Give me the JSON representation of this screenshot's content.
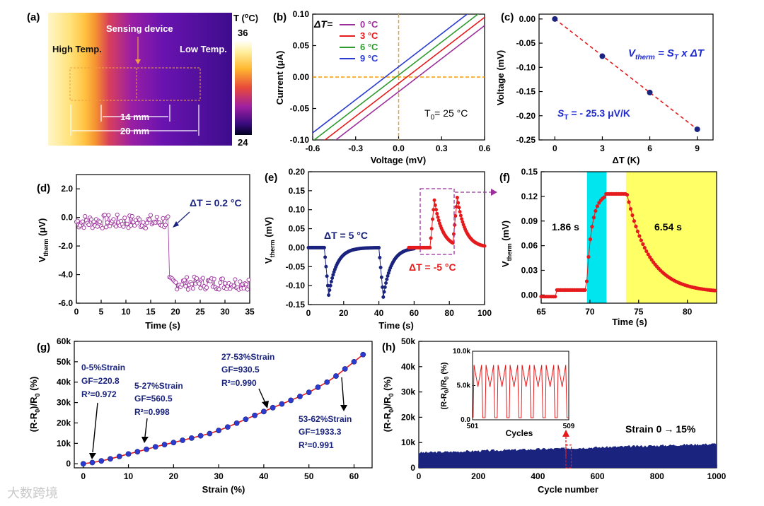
{
  "watermark": "大数跨境",
  "colors": {
    "navy": "#1a237e",
    "blue_text": "#1f2ad0",
    "red": "#e41a1c",
    "purple": "#9b2f9b",
    "green": "#2e9b2e",
    "orange": "#f39c12",
    "cyan": "#00e5ee",
    "yellow": "#ffff66"
  },
  "chart_data": [
    {
      "panel": "(a)",
      "type": "image",
      "texts": {
        "high_temp": "High Temp.",
        "low_temp": "Low Temp.",
        "sensing": "Sensing device",
        "dim_14": "14 mm",
        "dim_20": "20 mm",
        "colorbar_title": "T (",
        "colorbar_unit": "C)",
        "colorbar_degree": "o"
      },
      "colorbar": {
        "min": 24,
        "max": 36,
        "min_label": "24",
        "max_label": "36"
      }
    },
    {
      "panel": "(b)",
      "type": "line",
      "xlabel": "Voltage (mV)",
      "ylabel": "Current (",
      "ylabel_unit": "A)",
      "ylabel_mu": "μ",
      "xlim": [
        -0.6,
        0.6
      ],
      "ylim": [
        -0.1,
        0.1
      ],
      "xticks": [
        "-0.6",
        "-0.3",
        "0.0",
        "0.3",
        "0.6"
      ],
      "yticks": [
        "-0.10",
        "-0.05",
        "0.00",
        "0.05",
        "0.10"
      ],
      "legend_title": "ΔT=",
      "annotation": "T",
      "annotation_sub": "0",
      "annotation_rest": "= 25 °C",
      "series": [
        {
          "name": "0 °C",
          "color": "#9b2f9b",
          "x": [
            -0.6,
            0.6
          ],
          "y": [
            -0.1283,
            0.0817
          ]
        },
        {
          "name": "3 °C",
          "color": "#e41a1c",
          "x": [
            -0.6,
            0.6
          ],
          "y": [
            -0.1151,
            0.0949
          ]
        },
        {
          "name": "6 °C",
          "color": "#2e9b2e",
          "x": [
            -0.6,
            0.6
          ],
          "y": [
            -0.1019,
            0.1081
          ]
        },
        {
          "name": "9 °C",
          "color": "#2b3bd0",
          "x": [
            -0.6,
            0.6
          ],
          "y": [
            -0.0887,
            0.1213
          ]
        }
      ]
    },
    {
      "panel": "(c)",
      "type": "scatter",
      "xlabel": "ΔT (K)",
      "ylabel": "Voltage (mV)",
      "xlim": [
        -1,
        10
      ],
      "ylim": [
        -0.25,
        0.01
      ],
      "xticks": [
        "0",
        "3",
        "6",
        "9"
      ],
      "yticks": [
        "0.00",
        "-0.05",
        "-0.10",
        "-0.15",
        "-0.20",
        "-0.25"
      ],
      "x": [
        0,
        3,
        6,
        9
      ],
      "y": [
        0.0,
        -0.077,
        -0.152,
        -0.228
      ],
      "fit": {
        "x": [
          0,
          9
        ],
        "y": [
          0.0,
          -0.228
        ]
      },
      "eq_left": "V",
      "eq_left_sub": "therm",
      "eq_mid": " = S",
      "eq_mid_sub": "T",
      "eq_right": " x ΔT",
      "slope_label": "S",
      "slope_sub": "T",
      "slope_value": " = - 25.3 μV/K"
    },
    {
      "panel": "(d)",
      "type": "line",
      "xlabel": "Time (s)",
      "ylabel": "V",
      "ylabel_sub": "therm",
      "ylabel_unit": " (μV)",
      "xlim": [
        0,
        35
      ],
      "ylim": [
        -6,
        3
      ],
      "xticks": [
        "0",
        "5",
        "10",
        "15",
        "20",
        "25",
        "30",
        "35"
      ],
      "yticks": [
        "2.0",
        "0.0",
        "-2.0",
        "-4.0",
        "-6.0"
      ],
      "annotation": "ΔT = 0.2 °C",
      "series": [
        {
          "name": "",
          "segments": [
            {
              "from": 0,
              "to": 18.5,
              "level": -0.3,
              "noise": 0.5
            },
            {
              "from": 18.8,
              "to": 35,
              "level": -4.6,
              "noise": 0.45
            }
          ]
        }
      ]
    },
    {
      "panel": "(e)",
      "type": "line",
      "xlabel": "Time (s)",
      "ylabel": "V",
      "ylabel_sub": "therm",
      "ylabel_unit": " (mV)",
      "xlim": [
        0,
        100
      ],
      "ylim": [
        -0.15,
        0.2
      ],
      "xticks": [
        "0",
        "20",
        "40",
        "60",
        "80",
        "100"
      ],
      "yticks": [
        "0.20",
        "0.15",
        "0.10",
        "0.05",
        "0.00",
        "-0.05",
        "-0.10",
        "-0.15"
      ],
      "annotation_blue": "ΔT = 5 °C",
      "annotation_red": "ΔT = -5 °C",
      "series": [
        {
          "name": "",
          "color": "#1a237e",
          "peaks": [
            {
              "t0": 9,
              "amp": -0.125
            },
            {
              "t0": 40,
              "amp": -0.13
            }
          ],
          "from": 0,
          "to": 60
        },
        {
          "name": "",
          "color": "#e41a1c",
          "peaks": [
            {
              "t0": 69,
              "amp": 0.125
            },
            {
              "t0": 82,
              "amp": 0.125
            }
          ],
          "from": 57,
          "to": 100
        }
      ]
    },
    {
      "panel": "(f)",
      "type": "line",
      "xlabel": "Time (s)",
      "ylabel": "V",
      "ylabel_sub": "therm",
      "ylabel_unit": " (mV)",
      "xlim": [
        65,
        83
      ],
      "ylim": [
        -0.01,
        0.15
      ],
      "xticks": [
        "65",
        "70",
        "75",
        "80"
      ],
      "yticks": [
        "0.15",
        "0.12",
        "0.09",
        "0.06",
        "0.03",
        "0.00"
      ],
      "rise_label": "1.86 s",
      "fall_label": "6.54 s",
      "rise_band": [
        69.7,
        71.7
      ],
      "fall_band": [
        73.7,
        83
      ],
      "series": [
        {
          "name": "",
          "color": "#e41a1c"
        }
      ]
    },
    {
      "panel": "(g)",
      "type": "scatter",
      "xlabel": "Strain (%)",
      "ylabel": "(R-R",
      "ylabel_sub": "0",
      "ylabel_mid": ")/R",
      "ylabel_sub2": "0",
      "ylabel_end": " (%)",
      "xlim": [
        -2,
        64
      ],
      "ylim": [
        -2000,
        60000
      ],
      "xticks": [
        "0",
        "10",
        "20",
        "30",
        "40",
        "50",
        "60"
      ],
      "yticks": [
        "0",
        "10k",
        "20k",
        "30k",
        "40k",
        "50k",
        "60k"
      ],
      "x": [
        0,
        2,
        4,
        6,
        8,
        10,
        12,
        14,
        16,
        18,
        20,
        22,
        24,
        26,
        28,
        30,
        32,
        34,
        36,
        38,
        40,
        42,
        44,
        46,
        48,
        50,
        52,
        54,
        56,
        58,
        60,
        62
      ],
      "y": [
        0,
        600,
        1400,
        2400,
        3600,
        4800,
        5900,
        7100,
        8300,
        9400,
        10400,
        11500,
        12600,
        13700,
        14800,
        16300,
        18000,
        19900,
        21800,
        23700,
        25600,
        27500,
        29300,
        31100,
        33000,
        35000,
        37500,
        40000,
        43000,
        46500,
        50000,
        53500
      ],
      "annotations": [
        {
          "lines": [
            "0-5%Strain",
            "GF=220.8",
            "R²=0.972"
          ]
        },
        {
          "lines": [
            "5-27%Strain",
            "GF=560.5",
            "R²=0.998"
          ]
        },
        {
          "lines": [
            "27-53%Strain",
            "GF=930.5",
            "R²=0.990"
          ]
        },
        {
          "lines": [
            "53-62%Strain",
            "GF=1933.3",
            "R²=0.991"
          ]
        }
      ]
    },
    {
      "panel": "(h)",
      "type": "area",
      "xlabel": "Cycle number",
      "ylabel": "(R-R",
      "ylabel_sub": "0",
      "ylabel_mid": ")/R",
      "ylabel_sub2": "0",
      "ylabel_end": " (%)",
      "xlim": [
        0,
        1000
      ],
      "ylim": [
        0,
        50000
      ],
      "xticks": [
        "0",
        "200",
        "400",
        "600",
        "800",
        "1000"
      ],
      "yticks": [
        "0",
        "10k",
        "20k",
        "30k",
        "40k",
        "50k"
      ],
      "band_start": [
        0,
        6000
      ],
      "band_end": [
        1000,
        9500
      ],
      "strain_label": "Strain 0",
      "strain_end": "15%",
      "inset": {
        "xlabel": "Cycles",
        "xticks": [
          "501",
          "509"
        ],
        "yticks": [
          "0.0",
          "5.0k",
          "10.0k"
        ],
        "ylabel": "(R-R",
        "ylabel_sub": "0",
        "ylabel_mid": ")/R",
        "ylabel_sub2": "0",
        "ylabel_end": " (%)",
        "ylim": [
          0,
          10000
        ],
        "cycles": 8,
        "peak": 8000
      }
    }
  ]
}
